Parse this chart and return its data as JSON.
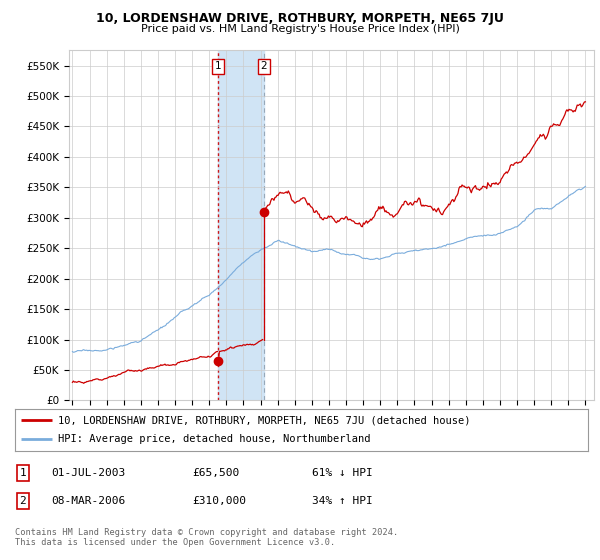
{
  "title": "10, LORDENSHAW DRIVE, ROTHBURY, MORPETH, NE65 7JU",
  "subtitle": "Price paid vs. HM Land Registry's House Price Index (HPI)",
  "ylim": [
    0,
    575000
  ],
  "yticks": [
    0,
    50000,
    100000,
    150000,
    200000,
    250000,
    300000,
    350000,
    400000,
    450000,
    500000,
    550000
  ],
  "ytick_labels": [
    "£0",
    "£50K",
    "£100K",
    "£150K",
    "£200K",
    "£250K",
    "£300K",
    "£350K",
    "£400K",
    "£450K",
    "£500K",
    "£550K"
  ],
  "sale1_date": 2003.5,
  "sale1_price": 65500,
  "sale1_label": "1",
  "sale2_date": 2006.18,
  "sale2_price": 310000,
  "sale2_label": "2",
  "sale_color": "#cc0000",
  "hpi_color": "#7aacdc",
  "span_color": "#d0e4f5",
  "legend_entries": [
    "10, LORDENSHAW DRIVE, ROTHBURY, MORPETH, NE65 7JU (detached house)",
    "HPI: Average price, detached house, Northumberland"
  ],
  "table_rows": [
    [
      "1",
      "01-JUL-2003",
      "£65,500",
      "61% ↓ HPI"
    ],
    [
      "2",
      "08-MAR-2006",
      "£310,000",
      "34% ↑ HPI"
    ]
  ],
  "footer": "Contains HM Land Registry data © Crown copyright and database right 2024.\nThis data is licensed under the Open Government Licence v3.0.",
  "background_color": "#ffffff",
  "grid_color": "#cccccc"
}
